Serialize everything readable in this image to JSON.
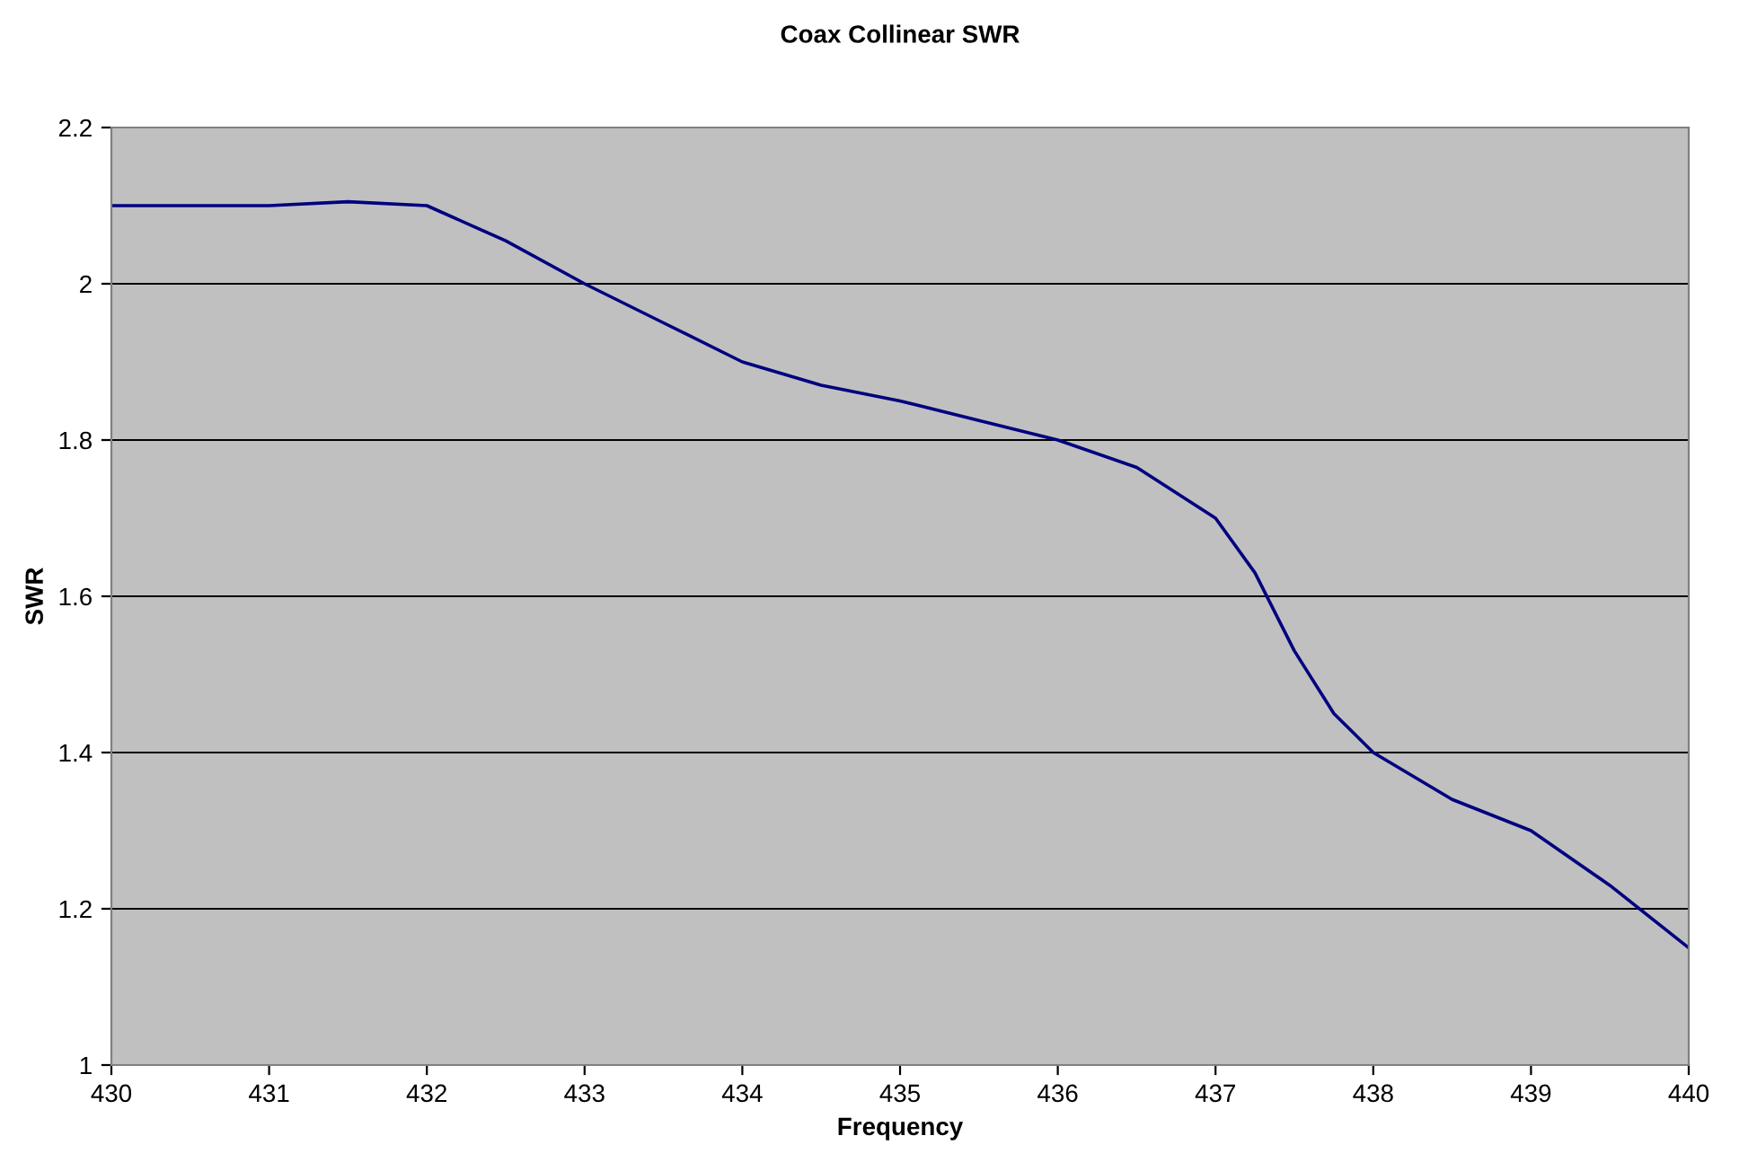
{
  "chart_data": {
    "type": "line",
    "title": "Coax Collinear SWR",
    "xlabel": "Frequency",
    "ylabel": "SWR",
    "x": [
      430,
      430.5,
      431,
      431.5,
      432,
      432.5,
      433,
      433.5,
      434,
      434.5,
      435,
      435.5,
      436,
      436.5,
      437,
      437.25,
      437.5,
      437.75,
      438,
      438.5,
      439,
      439.5,
      440
    ],
    "series": [
      {
        "color": "#000080",
        "values": [
          2.1,
          2.1,
          2.1,
          2.105,
          2.1,
          2.055,
          2.0,
          1.95,
          1.9,
          1.87,
          1.85,
          1.825,
          1.8,
          1.765,
          1.7,
          1.63,
          1.53,
          1.45,
          1.4,
          1.34,
          1.3,
          1.23,
          1.15
        ]
      }
    ],
    "xlim": [
      430,
      440
    ],
    "xticks": [
      430,
      431,
      432,
      433,
      434,
      435,
      436,
      437,
      438,
      439,
      440
    ],
    "ylim": [
      1,
      2.2
    ],
    "yticks": [
      1,
      1.2,
      1.4,
      1.6,
      1.8,
      2,
      2.2
    ],
    "grid": "y",
    "legend": false,
    "marker": "none",
    "line_style": "solid"
  }
}
